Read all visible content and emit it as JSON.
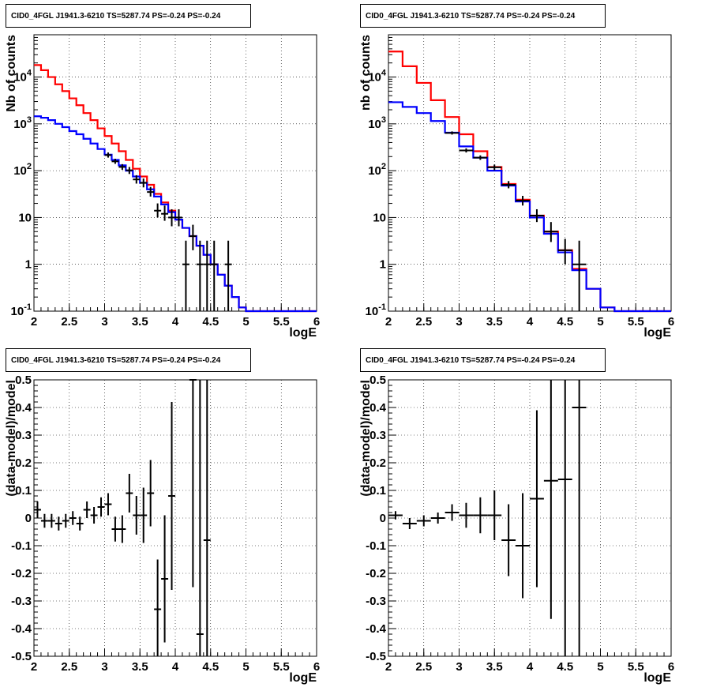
{
  "titles": [
    "CID0_4FGL J1941.3-6210 TS=5287.74 PS=-0.24 PS=-0.24",
    "CID0_4FGL J1941.3-6210 TS=5287.74 PS=-0.24 PS=-0.24",
    "CID0_4FGL J1941.3-6210 TS=5287.74 PS=-0.24 PS=-0.24",
    "CID0_4FGL J1941.3-6210 TS=5287.74 PS=-0.24 PS=-0.24"
  ],
  "colors": {
    "model_red": "#ff0000",
    "model_blue": "#0000ff",
    "data": "#000000"
  },
  "chart_data": [
    {
      "type": "line",
      "title": "CID0_4FGL J1941.3-6210 TS=5287.74 PS=-0.24 PS=-0.24",
      "xlabel": "logE",
      "ylabel": "Nb of counts",
      "xlim": [
        2,
        6
      ],
      "ylim": [
        0.1,
        80000
      ],
      "log_y": true,
      "grid": true,
      "x_ticks": [
        "2",
        "2.5",
        "3",
        "3.5",
        "4",
        "4.5",
        "5",
        "5.5",
        "6"
      ],
      "y_ticks": [
        "10^-1",
        "1",
        "10",
        "10^2",
        "10^3",
        "10^4"
      ],
      "bin_edges": [
        2.0,
        2.1,
        2.2,
        2.3,
        2.4,
        2.5,
        2.6,
        2.7,
        2.8,
        2.9,
        3.0,
        3.1,
        3.2,
        3.3,
        3.4,
        3.5,
        3.6,
        3.7,
        3.8,
        3.9,
        4.0,
        4.1,
        4.2,
        4.3,
        4.4,
        4.5,
        4.6,
        4.7,
        4.8,
        4.9,
        5.0,
        5.1,
        5.2,
        5.3,
        5.4,
        5.5,
        5.6,
        5.7,
        5.8,
        5.9,
        6.0
      ],
      "series": [
        {
          "values": [
            18000,
            14000,
            10000,
            7000,
            5000,
            3500,
            2500,
            1700,
            1200,
            800,
            550,
            380,
            260,
            170,
            110,
            75,
            50,
            32,
            21,
            14,
            9,
            6,
            4,
            2.5,
            1.6,
            1.0,
            0.6,
            0.35,
            0.2,
            0.12,
            0.1,
            0.1,
            0.1,
            0.1,
            0.1,
            0.1,
            0.1,
            0.1,
            0.1,
            0.1
          ]
        },
        {
          "values": [
            1450,
            1350,
            1200,
            1000,
            850,
            700,
            600,
            480,
            380,
            290,
            220,
            170,
            130,
            100,
            75,
            55,
            40,
            28,
            19,
            13,
            9,
            6,
            4,
            2.5,
            1.6,
            1.0,
            0.6,
            0.35,
            0.2,
            0.12,
            0.1,
            0.1,
            0.1,
            0.1,
            0.1,
            0.1,
            0.1,
            0.1,
            0.1,
            0.1
          ]
        }
      ],
      "points": [
        {
          "x": 3.05,
          "y": 215,
          "lo": 190,
          "hi": 245
        },
        {
          "x": 3.15,
          "y": 158,
          "lo": 140,
          "hi": 180
        },
        {
          "x": 3.25,
          "y": 120,
          "lo": 104,
          "hi": 138
        },
        {
          "x": 3.35,
          "y": 102,
          "lo": 85,
          "hi": 120
        },
        {
          "x": 3.45,
          "y": 65,
          "lo": 53,
          "hi": 80
        },
        {
          "x": 3.55,
          "y": 55,
          "lo": 44,
          "hi": 68
        },
        {
          "x": 3.65,
          "y": 35,
          "lo": 28,
          "hi": 45
        },
        {
          "x": 3.75,
          "y": 14,
          "lo": 10,
          "hi": 20
        },
        {
          "x": 3.85,
          "y": 12,
          "lo": 8.5,
          "hi": 18
        },
        {
          "x": 3.95,
          "y": 10,
          "lo": 6.5,
          "hi": 15
        },
        {
          "x": 4.05,
          "y": 10,
          "lo": 6.5,
          "hi": 15
        },
        {
          "x": 4.15,
          "y": 1,
          "lo": 0.1,
          "hi": 3.2
        },
        {
          "x": 4.25,
          "y": 4,
          "lo": 2,
          "hi": 7
        },
        {
          "x": 4.35,
          "y": 1,
          "lo": 0.1,
          "hi": 3.2
        },
        {
          "x": 4.45,
          "y": 1,
          "lo": 0.1,
          "hi": 3.2
        },
        {
          "x": 4.55,
          "y": 1,
          "lo": 0.1,
          "hi": 3.2
        },
        {
          "x": 4.75,
          "y": 1,
          "lo": 0.1,
          "hi": 3.2
        }
      ]
    },
    {
      "type": "line",
      "title": "CID0_4FGL J1941.3-6210 TS=5287.74 PS=-0.24 PS=-0.24",
      "xlabel": "logE",
      "ylabel": "nb of counts",
      "xlim": [
        2,
        6
      ],
      "ylim": [
        0.1,
        80000
      ],
      "log_y": true,
      "grid": true,
      "x_ticks": [
        "2",
        "2.5",
        "3",
        "3.5",
        "4",
        "4.5",
        "5",
        "5.5",
        "6"
      ],
      "y_ticks": [
        "10^-1",
        "1",
        "10",
        "10^2",
        "10^3",
        "10^4"
      ],
      "bin_edges": [
        2.0,
        2.2,
        2.4,
        2.6,
        2.8,
        3.0,
        3.2,
        3.4,
        3.6,
        3.8,
        4.0,
        4.2,
        4.4,
        4.6,
        4.8,
        5.0,
        5.2,
        5.4,
        5.6,
        5.8,
        6.0
      ],
      "series": [
        {
          "values": [
            35000,
            17000,
            7500,
            3200,
            1400,
            600,
            260,
            120,
            52,
            24,
            11,
            5,
            2,
            0.8,
            0.3,
            0.12,
            0.1,
            0.1,
            0.1,
            0.1
          ]
        },
        {
          "values": [
            2900,
            2300,
            1700,
            1150,
            650,
            330,
            190,
            100,
            48,
            22,
            10,
            4.5,
            1.8,
            0.75,
            0.3,
            0.12,
            0.1,
            0.1,
            0.1,
            0.1
          ]
        }
      ],
      "points": [
        {
          "x": 2.9,
          "y": 640,
          "lo": 590,
          "hi": 690
        },
        {
          "x": 3.1,
          "y": 270,
          "lo": 245,
          "hi": 300
        },
        {
          "x": 3.3,
          "y": 190,
          "lo": 170,
          "hi": 212
        },
        {
          "x": 3.5,
          "y": 118,
          "lo": 102,
          "hi": 135
        },
        {
          "x": 3.7,
          "y": 50,
          "lo": 42,
          "hi": 60
        },
        {
          "x": 3.9,
          "y": 23,
          "lo": 18,
          "hi": 29
        },
        {
          "x": 4.1,
          "y": 11,
          "lo": 8,
          "hi": 15
        },
        {
          "x": 4.3,
          "y": 5,
          "lo": 3,
          "hi": 8
        },
        {
          "x": 4.5,
          "y": 2,
          "lo": 1,
          "hi": 3.5
        },
        {
          "x": 4.7,
          "y": 1,
          "lo": 0.1,
          "hi": 3.2
        }
      ]
    },
    {
      "type": "scatter",
      "title": "CID0_4FGL J1941.3-6210 TS=5287.74 PS=-0.24 PS=-0.24",
      "xlabel": "logE",
      "ylabel": "(data-model)/model",
      "xlim": [
        2,
        6
      ],
      "ylim": [
        -0.5,
        0.5
      ],
      "grid": true,
      "x_ticks": [
        "2",
        "2.5",
        "3",
        "3.5",
        "4",
        "4.5",
        "5",
        "5.5",
        "6"
      ],
      "y_ticks": [
        "-0.5",
        "-0.4",
        "-0.3",
        "-0.2",
        "-0.1",
        "0",
        "0.1",
        "0.2",
        "0.3",
        "0.4",
        "0.5"
      ],
      "points": [
        {
          "x": 2.05,
          "y": 0.03,
          "err": 0.03
        },
        {
          "x": 2.15,
          "y": -0.01,
          "err": 0.025
        },
        {
          "x": 2.25,
          "y": -0.01,
          "err": 0.025
        },
        {
          "x": 2.35,
          "y": -0.02,
          "err": 0.025
        },
        {
          "x": 2.45,
          "y": -0.01,
          "err": 0.025
        },
        {
          "x": 2.55,
          "y": 0.0,
          "err": 0.025
        },
        {
          "x": 2.65,
          "y": -0.02,
          "err": 0.025
        },
        {
          "x": 2.75,
          "y": 0.03,
          "err": 0.03
        },
        {
          "x": 2.85,
          "y": 0.01,
          "err": 0.03
        },
        {
          "x": 2.95,
          "y": 0.04,
          "err": 0.035
        },
        {
          "x": 3.05,
          "y": 0.05,
          "err": 0.04
        },
        {
          "x": 3.15,
          "y": -0.04,
          "err": 0.045
        },
        {
          "x": 3.25,
          "y": -0.04,
          "err": 0.05
        },
        {
          "x": 3.35,
          "y": 0.09,
          "err": 0.07
        },
        {
          "x": 3.45,
          "y": 0.01,
          "err": 0.07
        },
        {
          "x": 3.55,
          "y": 0.01,
          "err": 0.1
        },
        {
          "x": 3.65,
          "y": 0.09,
          "err": 0.12
        },
        {
          "x": 3.75,
          "y": -0.33,
          "err": 0.18
        },
        {
          "x": 3.85,
          "y": -0.22,
          "err": 0.23
        },
        {
          "x": 3.95,
          "y": 0.08,
          "err": 0.34
        },
        {
          "x": 4.25,
          "y": 0.5,
          "err": 0.75
        },
        {
          "x": 4.35,
          "y": -0.42,
          "err": 1.0
        },
        {
          "x": 4.45,
          "y": -0.08,
          "err": 0.95
        }
      ]
    },
    {
      "type": "scatter",
      "title": "CID0_4FGL J1941.3-6210 TS=5287.74 PS=-0.24 PS=-0.24",
      "xlabel": "logE",
      "ylabel": "(data-model)/model",
      "xlim": [
        2,
        6
      ],
      "ylim": [
        -0.5,
        0.5
      ],
      "grid": true,
      "x_ticks": [
        "2",
        "2.5",
        "3",
        "3.5",
        "4",
        "4.5",
        "5",
        "5.5",
        "6"
      ],
      "y_ticks": [
        "-0.5",
        "-0.4",
        "-0.3",
        "-0.2",
        "-0.1",
        "0",
        "0.1",
        "0.2",
        "0.3",
        "0.4",
        "0.5"
      ],
      "points": [
        {
          "x": 2.1,
          "y": 0.01,
          "err": 0.015
        },
        {
          "x": 2.3,
          "y": -0.02,
          "err": 0.02
        },
        {
          "x": 2.5,
          "y": -0.01,
          "err": 0.02
        },
        {
          "x": 2.7,
          "y": 0.0,
          "err": 0.02
        },
        {
          "x": 2.9,
          "y": 0.02,
          "err": 0.03
        },
        {
          "x": 3.1,
          "y": 0.01,
          "err": 0.045
        },
        {
          "x": 3.3,
          "y": 0.01,
          "err": 0.065
        },
        {
          "x": 3.5,
          "y": 0.01,
          "err": 0.09
        },
        {
          "x": 3.7,
          "y": -0.08,
          "err": 0.13
        },
        {
          "x": 3.9,
          "y": -0.1,
          "err": 0.19
        },
        {
          "x": 4.1,
          "y": 0.07,
          "err": 0.32
        },
        {
          "x": 4.3,
          "y": 0.135,
          "err": 0.5
        },
        {
          "x": 4.5,
          "y": 0.14,
          "err": 0.85
        },
        {
          "x": 4.7,
          "y": 0.4,
          "err": 1.2
        }
      ]
    }
  ]
}
